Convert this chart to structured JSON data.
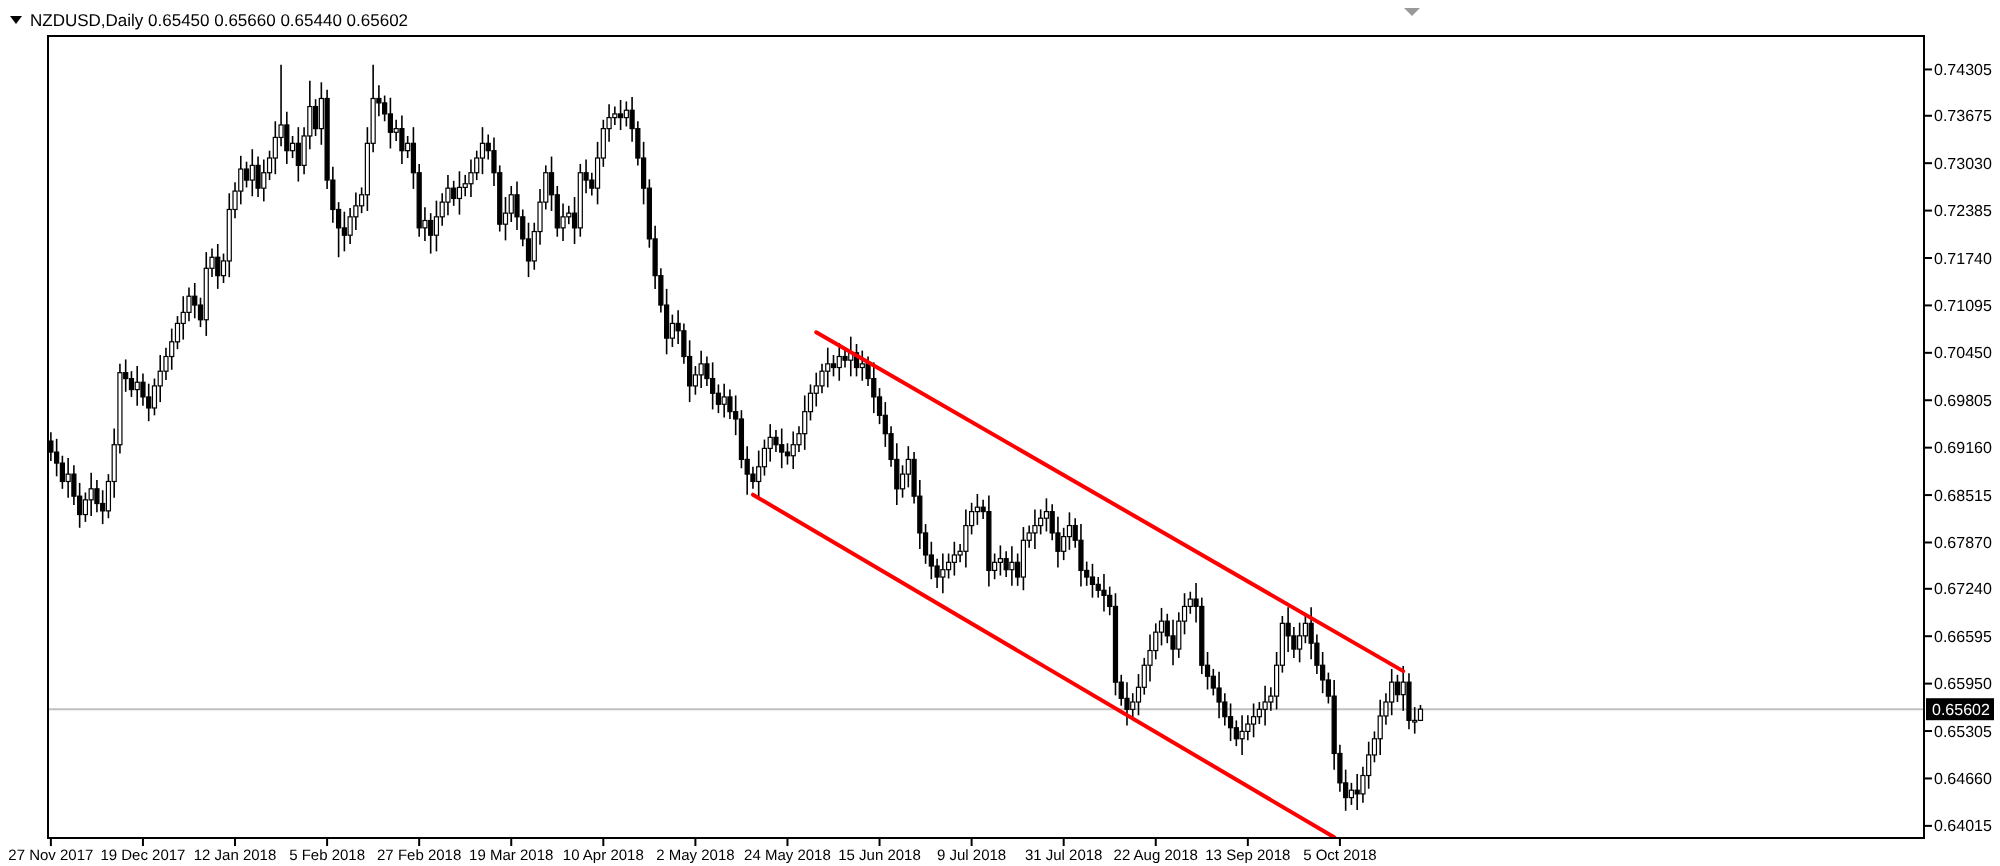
{
  "chart_data": {
    "type": "candlestick",
    "title": "NZDUSD,Daily  0.65450 0.65660 0.65440 0.65602",
    "categories": [
      "27 Nov 2017",
      null,
      null,
      null,
      null,
      null,
      null,
      null,
      null,
      null,
      null,
      null,
      null,
      null,
      null,
      null,
      "19 Dec 2017",
      null,
      null,
      null,
      null,
      null,
      null,
      null,
      null,
      null,
      null,
      null,
      null,
      null,
      null,
      null,
      "12 Jan 2018",
      null,
      null,
      null,
      null,
      null,
      null,
      null,
      null,
      null,
      null,
      null,
      null,
      null,
      null,
      null,
      "5 Feb 2018",
      null,
      null,
      null,
      null,
      null,
      null,
      null,
      null,
      null,
      null,
      null,
      null,
      null,
      null,
      null,
      "27 Feb 2018",
      null,
      null,
      null,
      null,
      null,
      null,
      null,
      null,
      null,
      null,
      null,
      null,
      null,
      null,
      null,
      "19 Mar 2018",
      null,
      null,
      null,
      null,
      null,
      null,
      null,
      null,
      null,
      null,
      null,
      null,
      null,
      null,
      null,
      "10 Apr 2018",
      null,
      null,
      null,
      null,
      null,
      null,
      null,
      null,
      null,
      null,
      null,
      null,
      null,
      null,
      null,
      "2 May 2018",
      null,
      null,
      null,
      null,
      null,
      null,
      null,
      null,
      null,
      null,
      null,
      null,
      null,
      null,
      null,
      "24 May 2018",
      null,
      null,
      null,
      null,
      null,
      null,
      null,
      null,
      null,
      null,
      null,
      null,
      null,
      null,
      null,
      "15 Jun 2018",
      null,
      null,
      null,
      null,
      null,
      null,
      null,
      null,
      null,
      null,
      null,
      null,
      null,
      null,
      null,
      "9 Jul 2018",
      null,
      null,
      null,
      null,
      null,
      null,
      null,
      null,
      null,
      null,
      null,
      null,
      null,
      null,
      null,
      "31 Jul 2018",
      null,
      null,
      null,
      null,
      null,
      null,
      null,
      null,
      null,
      null,
      null,
      null,
      null,
      null,
      null,
      "22 Aug 2018",
      null,
      null,
      null,
      null,
      null,
      null,
      null,
      null,
      null,
      null,
      null,
      null,
      null,
      null,
      null,
      "13 Sep 2018",
      null,
      null,
      null,
      null,
      null,
      null,
      null,
      null,
      null,
      null,
      null,
      null,
      null,
      null,
      null,
      "5 Oct 2018",
      null,
      null,
      null,
      null,
      null,
      null,
      null,
      null,
      null,
      null,
      null,
      null,
      null,
      null,
      null,
      null,
      null,
      null,
      null,
      null,
      null,
      null,
      null,
      null,
      null,
      null,
      null,
      null,
      null,
      null,
      null,
      null,
      null,
      null,
      null,
      null,
      null,
      null,
      null,
      null,
      null,
      null,
      null,
      null,
      null,
      null,
      null,
      null,
      null,
      null,
      null,
      null,
      null,
      null,
      null,
      null,
      null,
      null,
      null,
      null,
      null,
      null,
      null,
      null,
      null,
      null,
      null,
      null,
      null,
      null,
      null,
      null,
      null,
      null,
      null,
      null,
      null,
      null,
      null,
      null,
      null,
      null,
      null,
      null,
      null,
      null,
      null,
      null,
      null,
      null,
      null,
      null,
      null,
      null,
      null,
      null,
      null,
      null,
      null,
      null,
      null
    ],
    "ohlc": [
      [
        0.6925,
        0.6937,
        0.6898,
        0.691
      ],
      [
        0.691,
        0.6928,
        0.6877,
        0.6895
      ],
      [
        0.6895,
        0.6905,
        0.686,
        0.687
      ],
      [
        0.687,
        0.6902,
        0.6848,
        0.688
      ],
      [
        0.688,
        0.6892,
        0.6838,
        0.685
      ],
      [
        0.685,
        0.6868,
        0.6807,
        0.6825
      ],
      [
        0.6825,
        0.6855,
        0.6815,
        0.6845
      ],
      [
        0.6845,
        0.6882,
        0.6823,
        0.686
      ],
      [
        0.686,
        0.6872,
        0.6828,
        0.684
      ],
      [
        0.684,
        0.6858,
        0.6812,
        0.683
      ],
      [
        0.683,
        0.688,
        0.682,
        0.687
      ],
      [
        0.687,
        0.6942,
        0.6848,
        0.692
      ],
      [
        0.692,
        0.703,
        0.6908,
        0.7018
      ],
      [
        0.7018,
        0.7036,
        0.6992,
        0.701
      ],
      [
        0.701,
        0.702,
        0.6985,
        0.6995
      ],
      [
        0.6995,
        0.7027,
        0.6973,
        0.7005
      ],
      [
        0.7005,
        0.7017,
        0.6973,
        0.6985
      ],
      [
        0.6985,
        0.7003,
        0.6952,
        0.697
      ],
      [
        0.697,
        0.701,
        0.696,
        0.7
      ],
      [
        0.7,
        0.7042,
        0.6978,
        0.702
      ],
      [
        0.702,
        0.7052,
        0.7008,
        0.704
      ],
      [
        0.704,
        0.7078,
        0.7022,
        0.706
      ],
      [
        0.706,
        0.7095,
        0.705,
        0.7085
      ],
      [
        0.7085,
        0.7122,
        0.7063,
        0.71
      ],
      [
        0.71,
        0.7134,
        0.7088,
        0.7122
      ],
      [
        0.7122,
        0.714,
        0.7092,
        0.711
      ],
      [
        0.711,
        0.712,
        0.708,
        0.709
      ],
      [
        0.709,
        0.7182,
        0.7068,
        0.716
      ],
      [
        0.716,
        0.7187,
        0.7148,
        0.7175
      ],
      [
        0.7175,
        0.7193,
        0.7132,
        0.715
      ],
      [
        0.715,
        0.718,
        0.714,
        0.717
      ],
      [
        0.717,
        0.7262,
        0.7148,
        0.724
      ],
      [
        0.724,
        0.7277,
        0.7228,
        0.7265
      ],
      [
        0.7265,
        0.7313,
        0.7247,
        0.7295
      ],
      [
        0.7295,
        0.7305,
        0.727,
        0.728
      ],
      [
        0.728,
        0.7322,
        0.7258,
        0.73
      ],
      [
        0.73,
        0.7312,
        0.7257,
        0.7269
      ],
      [
        0.7269,
        0.7308,
        0.7251,
        0.729
      ],
      [
        0.729,
        0.732,
        0.728,
        0.731
      ],
      [
        0.731,
        0.736,
        0.7288,
        0.7338
      ],
      [
        0.7338,
        0.7437,
        0.7326,
        0.7355
      ],
      [
        0.7355,
        0.7373,
        0.7302,
        0.732
      ],
      [
        0.732,
        0.734,
        0.731,
        0.733
      ],
      [
        0.733,
        0.7352,
        0.7278,
        0.73
      ],
      [
        0.73,
        0.7352,
        0.7288,
        0.734
      ],
      [
        0.734,
        0.7415,
        0.7322,
        0.738
      ],
      [
        0.738,
        0.739,
        0.734,
        0.735
      ],
      [
        0.735,
        0.7413,
        0.7328,
        0.7391
      ],
      [
        0.7391,
        0.7403,
        0.7268,
        0.728
      ],
      [
        0.728,
        0.7298,
        0.7222,
        0.724
      ],
      [
        0.724,
        0.725,
        0.7175,
        0.7215
      ],
      [
        0.7215,
        0.7237,
        0.7183,
        0.7205
      ],
      [
        0.7205,
        0.7242,
        0.7193,
        0.723
      ],
      [
        0.723,
        0.7263,
        0.7212,
        0.7245
      ],
      [
        0.7245,
        0.727,
        0.7235,
        0.726
      ],
      [
        0.726,
        0.7352,
        0.7238,
        0.733
      ],
      [
        0.733,
        0.7437,
        0.7318,
        0.7391
      ],
      [
        0.7391,
        0.7409,
        0.7367,
        0.7385
      ],
      [
        0.7385,
        0.7395,
        0.736,
        0.737
      ],
      [
        0.737,
        0.7392,
        0.7323,
        0.7345
      ],
      [
        0.7345,
        0.7362,
        0.7333,
        0.735
      ],
      [
        0.735,
        0.7368,
        0.7302,
        0.732
      ],
      [
        0.732,
        0.734,
        0.731,
        0.733
      ],
      [
        0.733,
        0.7352,
        0.7268,
        0.729
      ],
      [
        0.729,
        0.7302,
        0.7203,
        0.7215
      ],
      [
        0.7215,
        0.7243,
        0.7197,
        0.7225
      ],
      [
        0.7225,
        0.7235,
        0.718,
        0.7205
      ],
      [
        0.7205,
        0.7252,
        0.7183,
        0.723
      ],
      [
        0.723,
        0.7262,
        0.7218,
        0.725
      ],
      [
        0.725,
        0.7287,
        0.7232,
        0.7269
      ],
      [
        0.7269,
        0.7279,
        0.7245,
        0.7255
      ],
      [
        0.7255,
        0.7292,
        0.7233,
        0.727
      ],
      [
        0.727,
        0.7287,
        0.7258,
        0.7275
      ],
      [
        0.7275,
        0.7308,
        0.7257,
        0.729
      ],
      [
        0.729,
        0.732,
        0.728,
        0.731
      ],
      [
        0.731,
        0.7352,
        0.7288,
        0.733
      ],
      [
        0.733,
        0.7342,
        0.7308,
        0.732
      ],
      [
        0.732,
        0.7338,
        0.7272,
        0.729
      ],
      [
        0.729,
        0.73,
        0.721,
        0.722
      ],
      [
        0.722,
        0.7257,
        0.7198,
        0.7235
      ],
      [
        0.7235,
        0.7272,
        0.7223,
        0.726
      ],
      [
        0.726,
        0.7278,
        0.7212,
        0.723
      ],
      [
        0.723,
        0.724,
        0.719,
        0.72
      ],
      [
        0.72,
        0.7222,
        0.7148,
        0.717
      ],
      [
        0.717,
        0.7222,
        0.7158,
        0.721
      ],
      [
        0.721,
        0.7268,
        0.7192,
        0.725
      ],
      [
        0.725,
        0.73,
        0.724,
        0.729
      ],
      [
        0.729,
        0.7312,
        0.7238,
        0.726
      ],
      [
        0.726,
        0.7272,
        0.7203,
        0.7215
      ],
      [
        0.7215,
        0.7248,
        0.7197,
        0.723
      ],
      [
        0.723,
        0.7245,
        0.722,
        0.7235
      ],
      [
        0.7235,
        0.7257,
        0.7193,
        0.7215
      ],
      [
        0.7215,
        0.7302,
        0.7203,
        0.729
      ],
      [
        0.729,
        0.7308,
        0.7262,
        0.728
      ],
      [
        0.728,
        0.729,
        0.7259,
        0.7269
      ],
      [
        0.7269,
        0.7332,
        0.7247,
        0.731
      ],
      [
        0.731,
        0.7362,
        0.7298,
        0.735
      ],
      [
        0.735,
        0.7383,
        0.7332,
        0.7365
      ],
      [
        0.7365,
        0.738,
        0.7355,
        0.737
      ],
      [
        0.737,
        0.7389,
        0.7348,
        0.7365
      ],
      [
        0.7365,
        0.7387,
        0.7353,
        0.7375
      ],
      [
        0.7375,
        0.7393,
        0.7332,
        0.735
      ],
      [
        0.735,
        0.736,
        0.73,
        0.731
      ],
      [
        0.731,
        0.7332,
        0.7247,
        0.7269
      ],
      [
        0.7269,
        0.7281,
        0.7188,
        0.72
      ],
      [
        0.72,
        0.7218,
        0.7132,
        0.715
      ],
      [
        0.715,
        0.716,
        0.71,
        0.711
      ],
      [
        0.711,
        0.7132,
        0.7043,
        0.7065
      ],
      [
        0.7065,
        0.7097,
        0.7053,
        0.7085
      ],
      [
        0.7085,
        0.7103,
        0.7057,
        0.7075
      ],
      [
        0.7075,
        0.7085,
        0.703,
        0.704
      ],
      [
        0.704,
        0.7062,
        0.6978,
        0.7
      ],
      [
        0.7,
        0.7027,
        0.6988,
        0.7015
      ],
      [
        0.7015,
        0.7048,
        0.6997,
        0.703
      ],
      [
        0.703,
        0.704,
        0.7,
        0.701
      ],
      [
        0.701,
        0.7032,
        0.6968,
        0.699
      ],
      [
        0.699,
        0.7002,
        0.6963,
        0.6975
      ],
      [
        0.6975,
        0.7003,
        0.6957,
        0.6985
      ],
      [
        0.6985,
        0.6995,
        0.6955,
        0.6965
      ],
      [
        0.6965,
        0.6987,
        0.6933,
        0.6955
      ],
      [
        0.6955,
        0.6967,
        0.6888,
        0.69
      ],
      [
        0.69,
        0.6918,
        0.6852,
        0.688
      ],
      [
        0.688,
        0.689,
        0.686,
        0.687
      ],
      [
        0.687,
        0.6912,
        0.6848,
        0.689
      ],
      [
        0.689,
        0.6927,
        0.6878,
        0.6915
      ],
      [
        0.6915,
        0.6948,
        0.6897,
        0.693
      ],
      [
        0.693,
        0.694,
        0.691,
        0.692
      ],
      [
        0.692,
        0.6942,
        0.6888,
        0.691
      ],
      [
        0.691,
        0.6922,
        0.6893,
        0.6905
      ],
      [
        0.6905,
        0.6938,
        0.6887,
        0.692
      ],
      [
        0.692,
        0.6945,
        0.691,
        0.6935
      ],
      [
        0.6935,
        0.6987,
        0.6913,
        0.6965
      ],
      [
        0.6965,
        0.7002,
        0.6953,
        0.699
      ],
      [
        0.699,
        0.7018,
        0.6972,
        0.7
      ],
      [
        0.7,
        0.703,
        0.699,
        0.702
      ],
      [
        0.702,
        0.7052,
        0.6998,
        0.703
      ],
      [
        0.703,
        0.7042,
        0.7013,
        0.7025
      ],
      [
        0.7025,
        0.7058,
        0.7007,
        0.704
      ],
      [
        0.704,
        0.705,
        0.7025,
        0.7035
      ],
      [
        0.7035,
        0.7067,
        0.7013,
        0.7045
      ],
      [
        0.7045,
        0.7057,
        0.7013,
        0.7025
      ],
      [
        0.7025,
        0.7048,
        0.7007,
        0.703
      ],
      [
        0.703,
        0.704,
        0.7,
        0.701
      ],
      [
        0.701,
        0.7032,
        0.6963,
        0.6985
      ],
      [
        0.6985,
        0.6997,
        0.6948,
        0.696
      ],
      [
        0.696,
        0.6978,
        0.6917,
        0.6935
      ],
      [
        0.6935,
        0.6945,
        0.689,
        0.69
      ],
      [
        0.69,
        0.6922,
        0.6838,
        0.686
      ],
      [
        0.686,
        0.6892,
        0.6848,
        0.688
      ],
      [
        0.688,
        0.6918,
        0.6862,
        0.69
      ],
      [
        0.69,
        0.691,
        0.684,
        0.685
      ],
      [
        0.685,
        0.6872,
        0.6778,
        0.68
      ],
      [
        0.68,
        0.6812,
        0.6758,
        0.677
      ],
      [
        0.677,
        0.6788,
        0.6737,
        0.6755
      ],
      [
        0.6755,
        0.6765,
        0.6725,
        0.674
      ],
      [
        0.674,
        0.6772,
        0.6718,
        0.675
      ],
      [
        0.675,
        0.6772,
        0.6738,
        0.676
      ],
      [
        0.676,
        0.6788,
        0.6742,
        0.677
      ],
      [
        0.677,
        0.6785,
        0.676,
        0.6775
      ],
      [
        0.6775,
        0.6832,
        0.6753,
        0.681
      ],
      [
        0.681,
        0.6841,
        0.6798,
        0.6829
      ],
      [
        0.6829,
        0.6853,
        0.6811,
        0.6835
      ],
      [
        0.6835,
        0.6845,
        0.6819,
        0.6829
      ],
      [
        0.6829,
        0.6851,
        0.6727,
        0.6749
      ],
      [
        0.6749,
        0.6772,
        0.6737,
        0.676
      ],
      [
        0.676,
        0.6783,
        0.6742,
        0.6765
      ],
      [
        0.6765,
        0.6775,
        0.674,
        0.675
      ],
      [
        0.675,
        0.6782,
        0.6728,
        0.676
      ],
      [
        0.676,
        0.6772,
        0.6728,
        0.674
      ],
      [
        0.674,
        0.6808,
        0.6722,
        0.679
      ],
      [
        0.679,
        0.681,
        0.678,
        0.68
      ],
      [
        0.68,
        0.6832,
        0.6778,
        0.681
      ],
      [
        0.681,
        0.6832,
        0.6798,
        0.682
      ],
      [
        0.682,
        0.6847,
        0.6802,
        0.6829
      ],
      [
        0.6829,
        0.6839,
        0.679,
        0.68
      ],
      [
        0.68,
        0.6822,
        0.6753,
        0.6775
      ],
      [
        0.6775,
        0.6807,
        0.6763,
        0.6795
      ],
      [
        0.6795,
        0.6828,
        0.6777,
        0.681
      ],
      [
        0.681,
        0.682,
        0.678,
        0.679
      ],
      [
        0.679,
        0.6812,
        0.6727,
        0.6749
      ],
      [
        0.6749,
        0.6761,
        0.6728,
        0.674
      ],
      [
        0.674,
        0.6758,
        0.6712,
        0.673
      ],
      [
        0.673,
        0.674,
        0.6712,
        0.6722
      ],
      [
        0.6722,
        0.6744,
        0.6693,
        0.6715
      ],
      [
        0.6715,
        0.6727,
        0.6688,
        0.67
      ],
      [
        0.67,
        0.6718,
        0.6579,
        0.6597
      ],
      [
        0.6597,
        0.6607,
        0.6565,
        0.6575
      ],
      [
        0.6575,
        0.6597,
        0.6538,
        0.656
      ],
      [
        0.656,
        0.6582,
        0.6548,
        0.657
      ],
      [
        0.657,
        0.6608,
        0.6552,
        0.659
      ],
      [
        0.659,
        0.663,
        0.658,
        0.662
      ],
      [
        0.662,
        0.6662,
        0.6598,
        0.664
      ],
      [
        0.664,
        0.6677,
        0.6628,
        0.6665
      ],
      [
        0.6665,
        0.6698,
        0.6647,
        0.668
      ],
      [
        0.668,
        0.669,
        0.665,
        0.666
      ],
      [
        0.666,
        0.6682,
        0.662,
        0.6642
      ],
      [
        0.6642,
        0.6692,
        0.663,
        0.668
      ],
      [
        0.668,
        0.6718,
        0.6662,
        0.67
      ],
      [
        0.67,
        0.672,
        0.669,
        0.671
      ],
      [
        0.671,
        0.6732,
        0.6678,
        0.67
      ],
      [
        0.67,
        0.6712,
        0.6608,
        0.662
      ],
      [
        0.662,
        0.6638,
        0.6587,
        0.6605
      ],
      [
        0.6605,
        0.6615,
        0.6579,
        0.6589
      ],
      [
        0.6589,
        0.6611,
        0.6548,
        0.657
      ],
      [
        0.657,
        0.6582,
        0.6538,
        0.655
      ],
      [
        0.655,
        0.6568,
        0.6517,
        0.6535
      ],
      [
        0.6535,
        0.6545,
        0.651,
        0.652
      ],
      [
        0.652,
        0.6552,
        0.6498,
        0.653
      ],
      [
        0.653,
        0.6552,
        0.6518,
        0.654
      ],
      [
        0.654,
        0.6568,
        0.6522,
        0.655
      ],
      [
        0.655,
        0.657,
        0.654,
        0.656
      ],
      [
        0.656,
        0.6592,
        0.6538,
        0.657
      ],
      [
        0.657,
        0.659,
        0.6558,
        0.6578
      ],
      [
        0.6578,
        0.6638,
        0.656,
        0.662
      ],
      [
        0.662,
        0.6687,
        0.661,
        0.6677
      ],
      [
        0.6677,
        0.6699,
        0.6638,
        0.666
      ],
      [
        0.666,
        0.6672,
        0.663,
        0.6642
      ],
      [
        0.6642,
        0.6678,
        0.6624,
        0.666
      ],
      [
        0.666,
        0.6687,
        0.665,
        0.6677
      ],
      [
        0.6677,
        0.6699,
        0.6628,
        0.665
      ],
      [
        0.665,
        0.6662,
        0.6608,
        0.662
      ],
      [
        0.662,
        0.6638,
        0.6582,
        0.66
      ],
      [
        0.66,
        0.661,
        0.6568,
        0.6578
      ],
      [
        0.6578,
        0.66,
        0.6478,
        0.65
      ],
      [
        0.65,
        0.6512,
        0.6448,
        0.646
      ],
      [
        0.646,
        0.6478,
        0.6422,
        0.644
      ],
      [
        0.644,
        0.646,
        0.643,
        0.645
      ],
      [
        0.645,
        0.6472,
        0.6423,
        0.6445
      ],
      [
        0.6445,
        0.6482,
        0.6433,
        0.647
      ],
      [
        0.647,
        0.6516,
        0.6452,
        0.6498
      ],
      [
        0.6498,
        0.653,
        0.6488,
        0.652
      ],
      [
        0.652,
        0.6573,
        0.6498,
        0.6551
      ],
      [
        0.6551,
        0.6582,
        0.6539,
        0.657
      ],
      [
        0.657,
        0.6615,
        0.6552,
        0.6597
      ],
      [
        0.6597,
        0.6607,
        0.657,
        0.658
      ],
      [
        0.658,
        0.6619,
        0.6558,
        0.6597
      ],
      [
        0.6597,
        0.6609,
        0.6533,
        0.6545
      ],
      [
        0.6545,
        0.6563,
        0.6527,
        0.6545
      ],
      [
        0.6545,
        0.6566,
        0.6544,
        0.65602
      ],
      null,
      null,
      null,
      null,
      null,
      null,
      null,
      null,
      null,
      null,
      null,
      null,
      null,
      null,
      null,
      null,
      null,
      null,
      null,
      null,
      null,
      null,
      null,
      null,
      null,
      null,
      null,
      null,
      null,
      null,
      null,
      null,
      null,
      null,
      null,
      null,
      null,
      null,
      null,
      null,
      null,
      null,
      null,
      null,
      null,
      null,
      null,
      null,
      null,
      null,
      null,
      null,
      null,
      null,
      null,
      null,
      null,
      null,
      null,
      null,
      null,
      null,
      null,
      null,
      null,
      null,
      null,
      null,
      null,
      null,
      null,
      null,
      null,
      null,
      null,
      null,
      null,
      null,
      null,
      null,
      null,
      null,
      null,
      null,
      null,
      null,
      null
    ],
    "series": [
      {
        "type": "line",
        "color": "#ff0000",
        "values": [
          null,
          null,
          null,
          null,
          null,
          null,
          null,
          null,
          null,
          null,
          null,
          null,
          null,
          null,
          null,
          null,
          null,
          null,
          null,
          null,
          null,
          null,
          null,
          null,
          null,
          null,
          null,
          null,
          null,
          null,
          null,
          null,
          null,
          null,
          null,
          null,
          null,
          null,
          null,
          null,
          null,
          null,
          null,
          null,
          null,
          null,
          null,
          null,
          null,
          null,
          null,
          null,
          null,
          null,
          null,
          null,
          null,
          null,
          null,
          null,
          null,
          null,
          null,
          null,
          null,
          null,
          null,
          null,
          null,
          null,
          null,
          null,
          null,
          null,
          null,
          null,
          null,
          null,
          null,
          null,
          null,
          null,
          null,
          null,
          null,
          null,
          null,
          null,
          null,
          null,
          null,
          null,
          null,
          null,
          null,
          null,
          null,
          null,
          null,
          null,
          null,
          null,
          null,
          null,
          null,
          null,
          null,
          null,
          null,
          null,
          null,
          null,
          null,
          null,
          null,
          null,
          null,
          null,
          null,
          null,
          null,
          null,
          null,
          null,
          null,
          null,
          null,
          null,
          null,
          null,
          null,
          null,
          null,
          0.7073,
          null,
          null,
          null,
          null,
          null,
          null,
          null,
          null,
          null,
          null,
          null,
          null,
          null,
          null,
          null,
          null,
          null,
          null,
          null,
          null,
          null,
          null,
          null,
          null,
          null,
          null,
          null,
          null,
          null,
          null,
          null,
          null,
          null,
          null,
          null,
          null,
          null,
          null,
          null,
          null,
          null,
          null,
          null,
          null,
          null,
          null,
          null,
          null,
          null,
          null,
          null,
          null,
          null,
          null,
          null,
          null,
          null,
          null,
          null,
          null,
          null,
          null,
          null,
          null,
          null,
          null,
          null,
          null,
          null,
          null,
          null,
          null,
          null,
          null,
          null,
          null,
          null,
          null,
          null,
          null,
          null,
          null,
          null,
          null,
          null,
          null,
          null,
          null,
          null,
          null,
          null,
          null,
          null,
          null,
          null,
          null,
          null,
          null,
          null,
          null,
          null,
          0.6612,
          null,
          null,
          null,
          null,
          null,
          null,
          null,
          null,
          null,
          null,
          null,
          null,
          null,
          null,
          null,
          null,
          null,
          null,
          null,
          null,
          null,
          null,
          null,
          null,
          null,
          null,
          null,
          null,
          null,
          null,
          null,
          null,
          null,
          null,
          null,
          null,
          null,
          null,
          null,
          null,
          null,
          null,
          null,
          null,
          null,
          null,
          null,
          null,
          null,
          null,
          null,
          null,
          null,
          null,
          null,
          null,
          null,
          null,
          null,
          null,
          null,
          null,
          null,
          null,
          null,
          null,
          null,
          null,
          null,
          null,
          null,
          null,
          null,
          null,
          null,
          null,
          null,
          null,
          null,
          null,
          null,
          null,
          null,
          null,
          null,
          null,
          null,
          null,
          null,
          null
        ]
      },
      {
        "type": "line",
        "color": "#ff0000",
        "values": [
          null,
          null,
          null,
          null,
          null,
          null,
          null,
          null,
          null,
          null,
          null,
          null,
          null,
          null,
          null,
          null,
          null,
          null,
          null,
          null,
          null,
          null,
          null,
          null,
          null,
          null,
          null,
          null,
          null,
          null,
          null,
          null,
          null,
          null,
          null,
          null,
          null,
          null,
          null,
          null,
          null,
          null,
          null,
          null,
          null,
          null,
          null,
          null,
          null,
          null,
          null,
          null,
          null,
          null,
          null,
          null,
          null,
          null,
          null,
          null,
          null,
          null,
          null,
          null,
          null,
          null,
          null,
          null,
          null,
          null,
          null,
          null,
          null,
          null,
          null,
          null,
          null,
          null,
          null,
          null,
          null,
          null,
          null,
          null,
          null,
          null,
          null,
          null,
          null,
          null,
          null,
          null,
          null,
          null,
          null,
          null,
          null,
          null,
          null,
          null,
          null,
          null,
          null,
          null,
          null,
          null,
          null,
          null,
          null,
          null,
          null,
          null,
          null,
          null,
          null,
          null,
          null,
          null,
          null,
          null,
          null,
          null,
          0.6852,
          null,
          null,
          null,
          null,
          null,
          null,
          null,
          null,
          null,
          null,
          null,
          null,
          null,
          null,
          null,
          null,
          null,
          null,
          null,
          null,
          null,
          null,
          null,
          null,
          null,
          null,
          null,
          null,
          null,
          null,
          null,
          null,
          null,
          null,
          null,
          null,
          null,
          null,
          null,
          null,
          null,
          null,
          null,
          null,
          null,
          null,
          null,
          null,
          null,
          null,
          null,
          null,
          null,
          null,
          null,
          null,
          null,
          null,
          null,
          null,
          null,
          null,
          null,
          null,
          null,
          null,
          null,
          null,
          null,
          null,
          null,
          null,
          null,
          null,
          null,
          null,
          null,
          null,
          null,
          null,
          null,
          null,
          null,
          null,
          null,
          null,
          null,
          null,
          null,
          null,
          null,
          null,
          null,
          null,
          null,
          null,
          null,
          null,
          null,
          null,
          0.6386,
          null,
          null,
          null,
          null,
          null,
          null,
          null,
          null,
          null,
          null,
          null,
          null,
          null,
          null,
          null,
          null,
          null,
          null,
          null,
          null,
          null,
          null,
          null,
          null,
          null,
          null,
          null,
          null,
          null,
          null,
          null,
          null,
          null,
          null,
          null,
          null,
          null,
          null,
          null,
          null,
          null,
          null,
          null,
          null,
          null,
          null,
          null,
          null,
          null,
          null,
          null,
          null,
          null,
          null,
          null,
          null,
          null,
          null,
          null,
          null,
          null,
          null,
          null,
          null,
          null,
          null,
          null,
          null,
          null,
          null,
          null,
          null,
          null,
          null,
          null,
          null,
          null,
          null,
          null,
          null,
          null,
          null,
          null,
          null,
          null,
          null,
          null,
          null,
          null,
          null,
          null,
          null,
          null,
          null,
          null,
          null,
          null,
          null,
          null,
          null,
          null,
          null
        ]
      }
    ],
    "ylim": [
      0.6385,
      0.7476
    ],
    "yticks": [
      0.74305,
      0.73675,
      {
        "value": 0.7303,
        "label": "0.73030"
      },
      0.72385,
      {
        "value": 0.7174,
        "label": "0.71740"
      },
      0.71095,
      {
        "value": 0.7045,
        "label": "0.70450"
      },
      0.69805,
      {
        "value": 0.6916,
        "label": "0.69160"
      },
      0.68515,
      {
        "value": 0.6787,
        "label": "0.67870"
      },
      {
        "value": 0.6724,
        "label": "0.67240"
      },
      0.66595,
      {
        "value": 0.6595,
        "label": "0.65950"
      },
      0.65305,
      {
        "value": 0.6466,
        "label": "0.64660"
      },
      0.64015
    ],
    "ref_lines": [
      {
        "axis": "y",
        "value": 0.65602,
        "label": "0.65602",
        "color": "#c0c0c0"
      }
    ]
  }
}
